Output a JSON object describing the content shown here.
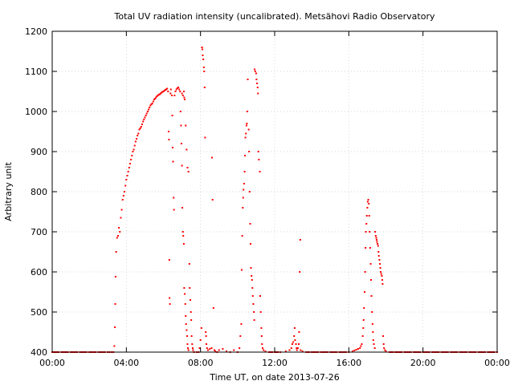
{
  "chart_data": {
    "type": "scatter",
    "title": "Total UV radiation intensity (uncalibrated). Metsähovi Radio Observatory",
    "xlabel": "Time UT, on date 2013-07-26",
    "ylabel": "Arbitrary unit",
    "xlim": [
      0,
      24
    ],
    "ylim": [
      400,
      1200
    ],
    "x_unit": "hours UT",
    "x_tick_labels": [
      "00:00",
      "04:00",
      "08:00",
      "12:00",
      "16:00",
      "20:00",
      "00:00"
    ],
    "y_tick_labels": [
      "400",
      "500",
      "600",
      "700",
      "800",
      "900",
      "1000",
      "1100",
      "1200"
    ],
    "grid": true,
    "color": "#ff0000",
    "series": [
      {
        "values": [
          [
            0.0,
            400
          ],
          [
            0.5,
            400
          ],
          [
            1.0,
            400
          ],
          [
            1.5,
            400
          ],
          [
            2.0,
            400
          ],
          [
            2.5,
            400
          ],
          [
            3.0,
            400
          ],
          [
            3.2,
            400
          ],
          [
            3.3,
            400
          ],
          [
            3.35,
            415
          ],
          [
            3.38,
            462
          ],
          [
            3.4,
            520
          ],
          [
            3.42,
            588
          ],
          [
            3.45,
            650
          ],
          [
            3.5,
            685
          ],
          [
            3.55,
            690
          ],
          [
            3.6,
            710
          ],
          [
            3.65,
            700
          ],
          [
            3.7,
            735
          ],
          [
            3.75,
            755
          ],
          [
            3.8,
            780
          ],
          [
            3.85,
            790
          ],
          [
            3.9,
            800
          ],
          [
            3.95,
            815
          ],
          [
            4.0,
            830
          ],
          [
            4.05,
            840
          ],
          [
            4.1,
            850
          ],
          [
            4.15,
            860
          ],
          [
            4.2,
            870
          ],
          [
            4.25,
            880
          ],
          [
            4.3,
            890
          ],
          [
            4.35,
            900
          ],
          [
            4.4,
            905
          ],
          [
            4.45,
            915
          ],
          [
            4.5,
            925
          ],
          [
            4.55,
            932
          ],
          [
            4.6,
            940
          ],
          [
            4.65,
            945
          ],
          [
            4.7,
            955
          ],
          [
            4.75,
            958
          ],
          [
            4.8,
            962
          ],
          [
            4.85,
            968
          ],
          [
            4.9,
            975
          ],
          [
            4.95,
            980
          ],
          [
            5.0,
            985
          ],
          [
            5.05,
            990
          ],
          [
            5.1,
            995
          ],
          [
            5.15,
            1000
          ],
          [
            5.2,
            1005
          ],
          [
            5.25,
            1010
          ],
          [
            5.3,
            1015
          ],
          [
            5.35,
            1018
          ],
          [
            5.4,
            1020
          ],
          [
            5.45,
            1025
          ],
          [
            5.5,
            1030
          ],
          [
            5.55,
            1032
          ],
          [
            5.6,
            1035
          ],
          [
            5.65,
            1038
          ],
          [
            5.7,
            1040
          ],
          [
            5.75,
            1042
          ],
          [
            5.8,
            1043
          ],
          [
            5.85,
            1045
          ],
          [
            5.9,
            1047
          ],
          [
            5.95,
            1049
          ],
          [
            6.0,
            1050
          ],
          [
            6.05,
            1052
          ],
          [
            6.1,
            1054
          ],
          [
            6.15,
            1055
          ],
          [
            6.2,
            1057
          ],
          [
            6.25,
            1050
          ],
          [
            6.28,
            950
          ],
          [
            6.3,
            930
          ],
          [
            6.32,
            630
          ],
          [
            6.33,
            535
          ],
          [
            6.35,
            520
          ],
          [
            6.38,
            1045
          ],
          [
            6.4,
            1055
          ],
          [
            6.45,
            1040
          ],
          [
            6.48,
            990
          ],
          [
            6.5,
            910
          ],
          [
            6.52,
            875
          ],
          [
            6.55,
            785
          ],
          [
            6.57,
            755
          ],
          [
            6.6,
            1040
          ],
          [
            6.65,
            1050
          ],
          [
            6.7,
            1055
          ],
          [
            6.75,
            1058
          ],
          [
            6.8,
            1060
          ],
          [
            6.85,
            1055
          ],
          [
            6.9,
            1050
          ],
          [
            6.92,
            1000
          ],
          [
            6.95,
            965
          ],
          [
            6.97,
            920
          ],
          [
            7.0,
            865
          ],
          [
            7.02,
            760
          ],
          [
            7.05,
            700
          ],
          [
            7.07,
            690
          ],
          [
            7.1,
            670
          ],
          [
            7.12,
            560
          ],
          [
            7.15,
            545
          ],
          [
            7.18,
            520
          ],
          [
            7.2,
            490
          ],
          [
            7.22,
            470
          ],
          [
            7.25,
            455
          ],
          [
            7.28,
            440
          ],
          [
            7.3,
            420
          ],
          [
            7.32,
            410
          ],
          [
            7.35,
            405
          ],
          [
            7.0,
            1045
          ],
          [
            7.05,
            1040
          ],
          [
            7.1,
            1050
          ],
          [
            7.12,
            1035
          ],
          [
            7.15,
            1030
          ],
          [
            7.2,
            965
          ],
          [
            7.25,
            905
          ],
          [
            7.3,
            860
          ],
          [
            7.35,
            850
          ],
          [
            7.4,
            620
          ],
          [
            7.42,
            560
          ],
          [
            7.45,
            530
          ],
          [
            7.48,
            500
          ],
          [
            7.5,
            480
          ],
          [
            7.52,
            440
          ],
          [
            7.55,
            420
          ],
          [
            7.58,
            410
          ],
          [
            7.6,
            405
          ],
          [
            7.65,
            400
          ],
          [
            7.8,
            400
          ],
          [
            7.9,
            400
          ],
          [
            7.95,
            410
          ],
          [
            8.0,
            430
          ],
          [
            8.05,
            460
          ],
          [
            8.08,
            1160
          ],
          [
            8.1,
            1155
          ],
          [
            8.12,
            1140
          ],
          [
            8.15,
            1130
          ],
          [
            8.18,
            1110
          ],
          [
            8.2,
            1100
          ],
          [
            8.22,
            1060
          ],
          [
            8.25,
            935
          ],
          [
            8.28,
            450
          ],
          [
            8.3,
            440
          ],
          [
            8.32,
            420
          ],
          [
            8.35,
            410
          ],
          [
            8.4,
            405
          ],
          [
            8.5,
            408
          ],
          [
            8.6,
            410
          ],
          [
            8.62,
            885
          ],
          [
            8.65,
            780
          ],
          [
            8.7,
            510
          ],
          [
            8.75,
            405
          ],
          [
            8.8,
            402
          ],
          [
            8.9,
            400
          ],
          [
            9.0,
            405
          ],
          [
            9.2,
            408
          ],
          [
            9.4,
            402
          ],
          [
            9.6,
            400
          ],
          [
            9.8,
            405
          ],
          [
            10.0,
            400
          ],
          [
            10.1,
            410
          ],
          [
            10.15,
            440
          ],
          [
            10.2,
            470
          ],
          [
            10.22,
            605
          ],
          [
            10.25,
            690
          ],
          [
            10.28,
            760
          ],
          [
            10.3,
            785
          ],
          [
            10.32,
            805
          ],
          [
            10.35,
            820
          ],
          [
            10.38,
            850
          ],
          [
            10.4,
            890
          ],
          [
            10.42,
            935
          ],
          [
            10.45,
            945
          ],
          [
            10.48,
            965
          ],
          [
            10.5,
            970
          ],
          [
            10.52,
            1000
          ],
          [
            10.55,
            1080
          ],
          [
            10.6,
            955
          ],
          [
            10.62,
            900
          ],
          [
            10.65,
            800
          ],
          [
            10.68,
            720
          ],
          [
            10.7,
            670
          ],
          [
            10.72,
            610
          ],
          [
            10.75,
            590
          ],
          [
            10.78,
            580
          ],
          [
            10.8,
            560
          ],
          [
            10.82,
            540
          ],
          [
            10.85,
            520
          ],
          [
            10.88,
            500
          ],
          [
            10.9,
            480
          ],
          [
            10.92,
            1105
          ],
          [
            10.95,
            1100
          ],
          [
            11.0,
            1095
          ],
          [
            11.02,
            1080
          ],
          [
            11.05,
            1070
          ],
          [
            11.08,
            1060
          ],
          [
            11.1,
            1045
          ],
          [
            11.12,
            900
          ],
          [
            11.15,
            880
          ],
          [
            11.2,
            850
          ],
          [
            11.22,
            540
          ],
          [
            11.25,
            500
          ],
          [
            11.28,
            460
          ],
          [
            11.3,
            440
          ],
          [
            11.32,
            420
          ],
          [
            11.35,
            410
          ],
          [
            11.4,
            405
          ],
          [
            11.5,
            402
          ],
          [
            11.7,
            400
          ],
          [
            12.0,
            400
          ],
          [
            12.3,
            400
          ],
          [
            12.6,
            402
          ],
          [
            12.8,
            405
          ],
          [
            12.9,
            410
          ],
          [
            12.95,
            420
          ],
          [
            13.0,
            425
          ],
          [
            13.05,
            440
          ],
          [
            13.08,
            460
          ],
          [
            13.1,
            430
          ],
          [
            13.15,
            420
          ],
          [
            13.18,
            410
          ],
          [
            13.2,
            405
          ],
          [
            13.25,
            410
          ],
          [
            13.3,
            420
          ],
          [
            13.32,
            450
          ],
          [
            13.35,
            600
          ],
          [
            13.38,
            680
          ],
          [
            13.4,
            405
          ],
          [
            13.5,
            402
          ],
          [
            13.7,
            400
          ],
          [
            14.0,
            400
          ],
          [
            14.5,
            400
          ],
          [
            15.0,
            400
          ],
          [
            15.5,
            400
          ],
          [
            16.0,
            400
          ],
          [
            16.2,
            402
          ],
          [
            16.3,
            404
          ],
          [
            16.4,
            406
          ],
          [
            16.5,
            408
          ],
          [
            16.6,
            410
          ],
          [
            16.65,
            415
          ],
          [
            16.7,
            420
          ],
          [
            16.75,
            440
          ],
          [
            16.78,
            460
          ],
          [
            16.8,
            480
          ],
          [
            16.82,
            510
          ],
          [
            16.85,
            550
          ],
          [
            16.88,
            600
          ],
          [
            16.9,
            660
          ],
          [
            16.92,
            700
          ],
          [
            16.95,
            720
          ],
          [
            16.97,
            740
          ],
          [
            17.0,
            760
          ],
          [
            17.02,
            775
          ],
          [
            17.05,
            780
          ],
          [
            17.08,
            770
          ],
          [
            17.1,
            740
          ],
          [
            17.12,
            700
          ],
          [
            17.15,
            660
          ],
          [
            17.18,
            620
          ],
          [
            17.2,
            580
          ],
          [
            17.22,
            540
          ],
          [
            17.25,
            500
          ],
          [
            17.28,
            470
          ],
          [
            17.3,
            450
          ],
          [
            17.32,
            430
          ],
          [
            17.35,
            420
          ],
          [
            17.4,
            410
          ],
          [
            17.42,
            700
          ],
          [
            17.45,
            690
          ],
          [
            17.48,
            685
          ],
          [
            17.5,
            680
          ],
          [
            17.52,
            675
          ],
          [
            17.55,
            670
          ],
          [
            17.58,
            665
          ],
          [
            17.6,
            650
          ],
          [
            17.62,
            640
          ],
          [
            17.65,
            630
          ],
          [
            17.68,
            620
          ],
          [
            17.7,
            610
          ],
          [
            17.72,
            600
          ],
          [
            17.75,
            595
          ],
          [
            17.78,
            590
          ],
          [
            17.8,
            580
          ],
          [
            17.82,
            570
          ],
          [
            17.85,
            440
          ],
          [
            17.88,
            420
          ],
          [
            17.9,
            410
          ],
          [
            17.95,
            405
          ],
          [
            18.0,
            402
          ],
          [
            18.2,
            400
          ],
          [
            18.5,
            400
          ],
          [
            19.0,
            400
          ],
          [
            19.5,
            400
          ],
          [
            20.0,
            400
          ],
          [
            20.5,
            400
          ],
          [
            21.0,
            400
          ],
          [
            21.5,
            400
          ],
          [
            22.0,
            400
          ],
          [
            22.5,
            400
          ],
          [
            23.0,
            400
          ],
          [
            23.5,
            400
          ],
          [
            24.0,
            400
          ]
        ]
      }
    ]
  }
}
